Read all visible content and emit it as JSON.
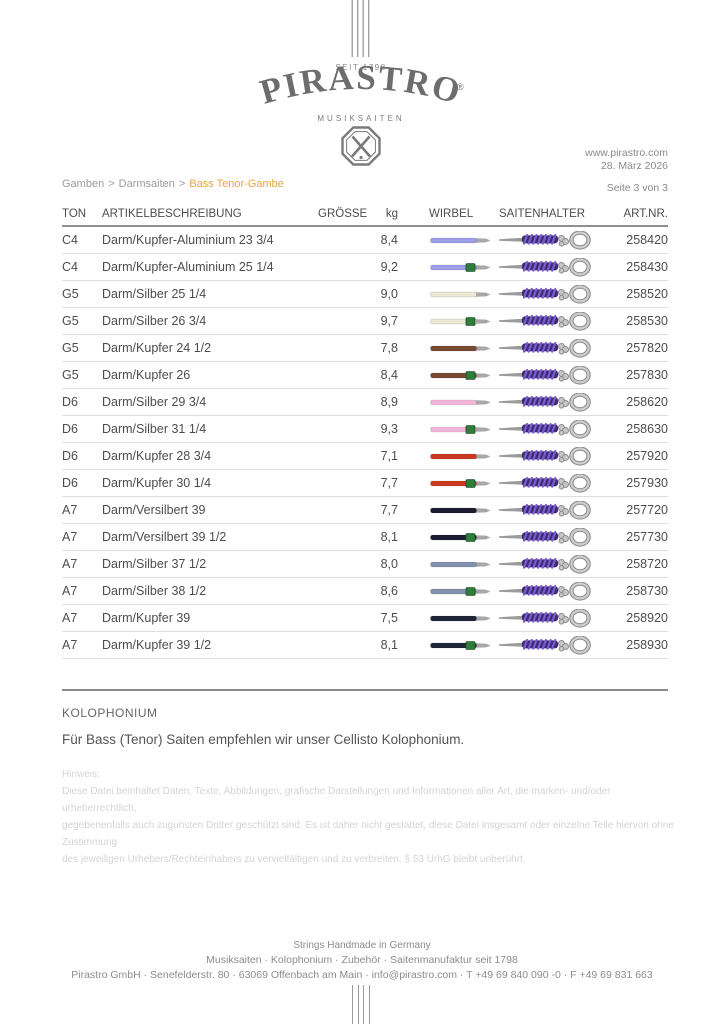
{
  "logo": {
    "since": "SEIT 1798",
    "brand": "PIRASTRO",
    "registered": "®",
    "subtitle": "MUSIKSAITEN"
  },
  "header": {
    "website": "www.pirastro.com",
    "date": "28. März 2026",
    "page_indicator": "Seite 3 von 3"
  },
  "breadcrumb": {
    "separator": ">",
    "items": [
      {
        "label": "Gamben",
        "active": false
      },
      {
        "label": "Darmsaiten",
        "active": false
      },
      {
        "label": "Bass Tenor-Gambe",
        "active": true
      }
    ],
    "active_color": "#e8a53c"
  },
  "table": {
    "headers": [
      "TON",
      "ARTIKELBESCHREIBUNG",
      "GRÖSSE",
      "kg",
      "WIRBEL",
      "SAITENHALTER",
      "ART.NR."
    ],
    "wirbel_band_color": "#2e7d3a",
    "saitenhalter_wrap_color": "#3c2b72",
    "saitenhalter_stripe_color": "#7b5dd0",
    "rows": [
      {
        "ton": "C4",
        "beschreibung": "Darm/Kupfer-Aluminium 23 3/4",
        "groesse": "",
        "kg": "8,4",
        "wirbel_color": "#9d9ee8",
        "wirbel_band": false,
        "artnr": "258420"
      },
      {
        "ton": "C4",
        "beschreibung": "Darm/Kupfer-Aluminium 25 1/4",
        "groesse": "",
        "kg": "9,2",
        "wirbel_color": "#9d9ee8",
        "wirbel_band": true,
        "artnr": "258430"
      },
      {
        "ton": "G5",
        "beschreibung": "Darm/Silber 25 1/4",
        "groesse": "",
        "kg": "9,0",
        "wirbel_color": "#eae7d5",
        "wirbel_band": false,
        "artnr": "258520"
      },
      {
        "ton": "G5",
        "beschreibung": "Darm/Silber 26 3/4",
        "groesse": "",
        "kg": "9,7",
        "wirbel_color": "#eae7d5",
        "wirbel_band": true,
        "artnr": "258530"
      },
      {
        "ton": "G5",
        "beschreibung": "Darm/Kupfer 24 1/2",
        "groesse": "",
        "kg": "7,8",
        "wirbel_color": "#774a31",
        "wirbel_band": false,
        "artnr": "257820"
      },
      {
        "ton": "G5",
        "beschreibung": "Darm/Kupfer 26",
        "groesse": "",
        "kg": "8,4",
        "wirbel_color": "#774a31",
        "wirbel_band": true,
        "artnr": "257830"
      },
      {
        "ton": "D6",
        "beschreibung": "Darm/Silber 29 3/4",
        "groesse": "",
        "kg": "8,9",
        "wirbel_color": "#f2b5da",
        "wirbel_band": false,
        "artnr": "258620"
      },
      {
        "ton": "D6",
        "beschreibung": "Darm/Silber 31 1/4",
        "groesse": "",
        "kg": "9,3",
        "wirbel_color": "#f2b5da",
        "wirbel_band": true,
        "artnr": "258630"
      },
      {
        "ton": "D6",
        "beschreibung": "Darm/Kupfer 28 3/4",
        "groesse": "",
        "kg": "7,1",
        "wirbel_color": "#cd3a24",
        "wirbel_band": false,
        "artnr": "257920"
      },
      {
        "ton": "D6",
        "beschreibung": "Darm/Kupfer 30 1/4",
        "groesse": "",
        "kg": "7,7",
        "wirbel_color": "#cd3a24",
        "wirbel_band": true,
        "artnr": "257930"
      },
      {
        "ton": "A7",
        "beschreibung": "Darm/Versilbert 39",
        "groesse": "",
        "kg": "7,7",
        "wirbel_color": "#1d1d31",
        "wirbel_band": false,
        "artnr": "257720"
      },
      {
        "ton": "A7",
        "beschreibung": "Darm/Versilbert 39 1/2",
        "groesse": "",
        "kg": "8,1",
        "wirbel_color": "#1d1d31",
        "wirbel_band": true,
        "artnr": "257730"
      },
      {
        "ton": "A7",
        "beschreibung": "Darm/Silber 37 1/2",
        "groesse": "",
        "kg": "8,0",
        "wirbel_color": "#8292ae",
        "wirbel_band": false,
        "artnr": "258720"
      },
      {
        "ton": "A7",
        "beschreibung": "Darm/Silber 38 1/2",
        "groesse": "",
        "kg": "8,6",
        "wirbel_color": "#8292ae",
        "wirbel_band": true,
        "artnr": "258730"
      },
      {
        "ton": "A7",
        "beschreibung": "Darm/Kupfer 39",
        "groesse": "",
        "kg": "7,5",
        "wirbel_color": "#1f2737",
        "wirbel_band": false,
        "artnr": "258920"
      },
      {
        "ton": "A7",
        "beschreibung": "Darm/Kupfer 39 1/2",
        "groesse": "",
        "kg": "8,1",
        "wirbel_color": "#1f2737",
        "wirbel_band": true,
        "artnr": "258930"
      }
    ]
  },
  "kolophonium": {
    "title": "KOLOPHONIUM",
    "text": "Für Bass (Tenor) Saiten empfehlen wir unser Cellisto Kolophonium."
  },
  "hinweis": {
    "title": "Hinweis:",
    "lines": [
      "Diese Datei beinhaltet Daten, Texte, Abbildungen, grafische Darstellungen und Informationen aller Art, die marken- und/oder urheberrechtlich,",
      "gegebenenfalls auch zugunsten Dritter geschützt sind. Es ist daher nicht gestattet, diese Datei insgesamt oder einzelne Teile hiervon ohne Zustimmung",
      "des jeweiligen Urhebers/Rechteinhabers zu vervielfältigen und zu verbreiten. § 53 UrhG bleibt unberührt."
    ]
  },
  "footer": {
    "lines": [
      "Strings Handmade in Germany",
      "Musiksaiten · Kolophonium · Zubehör · Saitenmanufaktur seit 1798",
      "Pirastro GmbH · Senefelderstr. 80 · 63069 Offenbach am Main · info@pirastro.com · T +49 69 840 090 -0 · F +49 69 831 663"
    ]
  }
}
